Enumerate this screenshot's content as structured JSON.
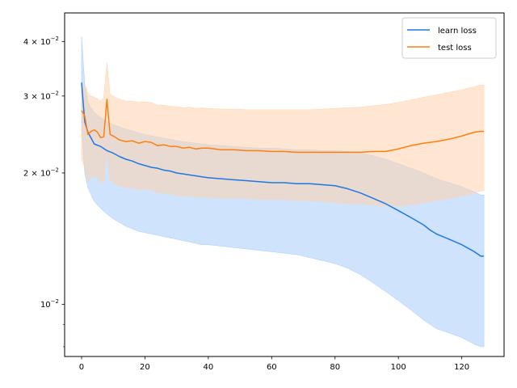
{
  "chart_data": {
    "type": "line",
    "title": "",
    "xlabel": "",
    "ylabel": "",
    "y_scale": "log",
    "xlim": [
      -5.35,
      133.35
    ],
    "ylim": [
      0.0076,
      0.0465
    ],
    "grid": false,
    "legend_position": "top-right",
    "x_ticks": [
      0,
      20,
      40,
      60,
      80,
      100,
      120
    ],
    "x_tick_labels": [
      "0",
      "20",
      "40",
      "60",
      "80",
      "100",
      "120"
    ],
    "y_ticks": [
      0.01,
      0.02,
      0.03,
      0.04
    ],
    "y_tick_labels": [
      {
        "base": "10",
        "exp": "−2",
        "coef": ""
      },
      {
        "base": "10",
        "exp": "−2",
        "coef": "2 × "
      },
      {
        "base": "10",
        "exp": "−2",
        "coef": "3 × "
      },
      {
        "base": "10",
        "exp": "−2",
        "coef": "4 × "
      }
    ],
    "y_minor_ticks": [
      0.008,
      0.009,
      0.05,
      0.06,
      0.07,
      0.08,
      0.09
    ],
    "series": [
      {
        "name": "learn loss",
        "color": "#1f77e4",
        "band_color": "#a7cdfa",
        "x": [
          0,
          1,
          2,
          4,
          6,
          8,
          10,
          12,
          14,
          16,
          18,
          20,
          22,
          24,
          26,
          28,
          30,
          32,
          34,
          36,
          38,
          40,
          44,
          48,
          52,
          56,
          60,
          64,
          68,
          72,
          76,
          80,
          84,
          88,
          92,
          96,
          100,
          104,
          108,
          110,
          112,
          116,
          120,
          124,
          126,
          127
        ],
        "y": [
          0.0322,
          0.0262,
          0.0248,
          0.0233,
          0.023,
          0.0225,
          0.0222,
          0.0218,
          0.0215,
          0.0213,
          0.021,
          0.0208,
          0.0206,
          0.0205,
          0.0203,
          0.0202,
          0.02,
          0.0199,
          0.0198,
          0.0197,
          0.0196,
          0.0195,
          0.0194,
          0.0193,
          0.0192,
          0.0191,
          0.019,
          0.019,
          0.0189,
          0.0189,
          0.0188,
          0.0187,
          0.0184,
          0.018,
          0.0175,
          0.017,
          0.0164,
          0.0158,
          0.0152,
          0.0148,
          0.0145,
          0.0141,
          0.0137,
          0.0132,
          0.0129,
          0.0129
        ],
        "upper": [
          0.041,
          0.032,
          0.029,
          0.0275,
          0.0268,
          0.0262,
          0.0258,
          0.0255,
          0.0252,
          0.025,
          0.0247,
          0.0245,
          0.0243,
          0.0242,
          0.024,
          0.0239,
          0.0237,
          0.0236,
          0.0235,
          0.0234,
          0.0233,
          0.0232,
          0.0231,
          0.023,
          0.0229,
          0.0228,
          0.0228,
          0.0227,
          0.0226,
          0.0226,
          0.0225,
          0.0225,
          0.0224,
          0.0222,
          0.0219,
          0.0215,
          0.021,
          0.0205,
          0.02,
          0.0197,
          0.0194,
          0.019,
          0.0186,
          0.0181,
          0.0178,
          0.0178
        ],
        "lower": [
          0.0255,
          0.02,
          0.0185,
          0.0172,
          0.0166,
          0.0161,
          0.0157,
          0.0154,
          0.0151,
          0.0149,
          0.0147,
          0.0146,
          0.0145,
          0.0144,
          0.0143,
          0.0142,
          0.0141,
          0.014,
          0.0139,
          0.0138,
          0.0137,
          0.0137,
          0.0136,
          0.0135,
          0.0134,
          0.0133,
          0.0132,
          0.0131,
          0.013,
          0.0128,
          0.0126,
          0.0124,
          0.0121,
          0.0117,
          0.0112,
          0.0107,
          0.0102,
          0.0097,
          0.0092,
          0.009,
          0.0088,
          0.0086,
          0.0084,
          0.0081,
          0.008,
          0.008
        ]
      },
      {
        "name": "test loss",
        "color": "#ff7f0e",
        "band_color": "#ffd2ad",
        "x": [
          0,
          1,
          2,
          3,
          4,
          5,
          6,
          7,
          8,
          9,
          10,
          12,
          14,
          16,
          18,
          20,
          22,
          24,
          26,
          28,
          30,
          32,
          34,
          36,
          38,
          40,
          44,
          48,
          52,
          56,
          60,
          64,
          68,
          72,
          76,
          80,
          84,
          88,
          92,
          96,
          100,
          104,
          108,
          112,
          116,
          120,
          124,
          126,
          127
        ],
        "y": [
          0.0278,
          0.027,
          0.0245,
          0.0249,
          0.0251,
          0.0248,
          0.0241,
          0.0242,
          0.0295,
          0.0245,
          0.0243,
          0.0238,
          0.0236,
          0.0237,
          0.0234,
          0.0236,
          0.0235,
          0.0231,
          0.0232,
          0.023,
          0.023,
          0.0228,
          0.0229,
          0.0227,
          0.0228,
          0.0228,
          0.0226,
          0.0226,
          0.0225,
          0.0225,
          0.0224,
          0.0224,
          0.0223,
          0.0223,
          0.0223,
          0.0223,
          0.0223,
          0.0223,
          0.0224,
          0.0224,
          0.0227,
          0.0231,
          0.0234,
          0.0236,
          0.0239,
          0.0243,
          0.0248,
          0.0249,
          0.0249
        ],
        "upper": [
          0.032,
          0.0318,
          0.0305,
          0.03,
          0.0298,
          0.0296,
          0.0292,
          0.0298,
          0.0358,
          0.0302,
          0.03,
          0.0295,
          0.0292,
          0.0292,
          0.029,
          0.0291,
          0.029,
          0.0286,
          0.0286,
          0.0284,
          0.0284,
          0.0282,
          0.0283,
          0.0281,
          0.0282,
          0.0281,
          0.028,
          0.028,
          0.0279,
          0.0279,
          0.0279,
          0.0279,
          0.0279,
          0.0279,
          0.028,
          0.0281,
          0.0282,
          0.0283,
          0.0285,
          0.0287,
          0.029,
          0.0294,
          0.0298,
          0.0302,
          0.0306,
          0.031,
          0.0315,
          0.0318,
          0.0318
        ],
        "lower": [
          0.0215,
          0.0205,
          0.0192,
          0.0195,
          0.0197,
          0.0195,
          0.019,
          0.0191,
          0.0225,
          0.0192,
          0.019,
          0.0187,
          0.0185,
          0.0185,
          0.0183,
          0.0184,
          0.0183,
          0.018,
          0.018,
          0.0179,
          0.0178,
          0.0177,
          0.0177,
          0.0176,
          0.0176,
          0.0176,
          0.0175,
          0.0175,
          0.0175,
          0.0174,
          0.0174,
          0.0174,
          0.0173,
          0.0173,
          0.0172,
          0.0171,
          0.017,
          0.017,
          0.0169,
          0.0168,
          0.0168,
          0.0169,
          0.0171,
          0.0173,
          0.0175,
          0.0177,
          0.018,
          0.0182,
          0.0182
        ]
      }
    ]
  }
}
